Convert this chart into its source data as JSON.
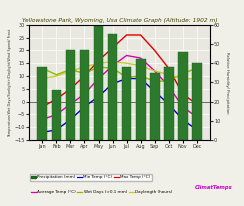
{
  "title": "Yellowstone Park, Wyoming, Usa Climate Graph (Altitude: 1902 m)",
  "months": [
    "Jan",
    "Feb",
    "Mar",
    "Apr",
    "May",
    "Jun",
    "Jul",
    "Aug",
    "Sep",
    "Oct",
    "Nov",
    "Dec"
  ],
  "precipitation": [
    38,
    26,
    47,
    47,
    68,
    55,
    38,
    42,
    35,
    38,
    46,
    40
  ],
  "min_temp": [
    -12,
    -11,
    -7,
    -2,
    2,
    7,
    9,
    9,
    4,
    -1,
    -7,
    -11
  ],
  "max_temp": [
    -2,
    1,
    5,
    10,
    16,
    21,
    26,
    26,
    20,
    13,
    3,
    -1
  ],
  "avg_temp": [
    -7,
    -5,
    -1,
    3,
    9,
    14,
    18,
    17,
    12,
    6,
    -2,
    -6
  ],
  "wet_days": [
    13,
    10.5,
    12.5,
    11,
    13.5,
    13,
    9.5,
    10,
    8,
    8,
    11,
    13
  ],
  "daylength": [
    9,
    10,
    12,
    13.5,
    15,
    15.5,
    15,
    14,
    12,
    10.5,
    9,
    8.8
  ],
  "bar_color": "#2d7a2d",
  "bar_edge_color": "#1a5e1a",
  "min_temp_color": "#0000cc",
  "max_temp_color": "#dd0000",
  "avg_temp_color": "#dd00aa",
  "wet_days_color": "#88bb00",
  "daylength_color": "#c8c832",
  "left_ylim": [
    -15,
    30
  ],
  "right_ylim": [
    0,
    60
  ],
  "left_yticks": [
    -15,
    -10,
    -5,
    0,
    5,
    10,
    15,
    20,
    25,
    30
  ],
  "right_yticks": [
    0,
    10,
    20,
    30,
    40,
    50,
    60
  ],
  "bg_color": "#f0efe8",
  "plot_bg_color": "#e8e8e0",
  "grid_color": "#ffffff",
  "title_color": "#444400",
  "climatemps_color": "#cc00cc",
  "ylabel_left": "Temperature/Wet Days/Sunlight+/Daylight/Wind Speed/ Frost",
  "ylabel_right": "Relative Humidity/ Precipitation",
  "legend_items": [
    "Precipitation (mm)",
    "Min Temp (°C)",
    "Max Temp (°C)",
    "Average Temp (°C)",
    "Wet Days (>0.1 mm)",
    "Daylength (hours)"
  ]
}
